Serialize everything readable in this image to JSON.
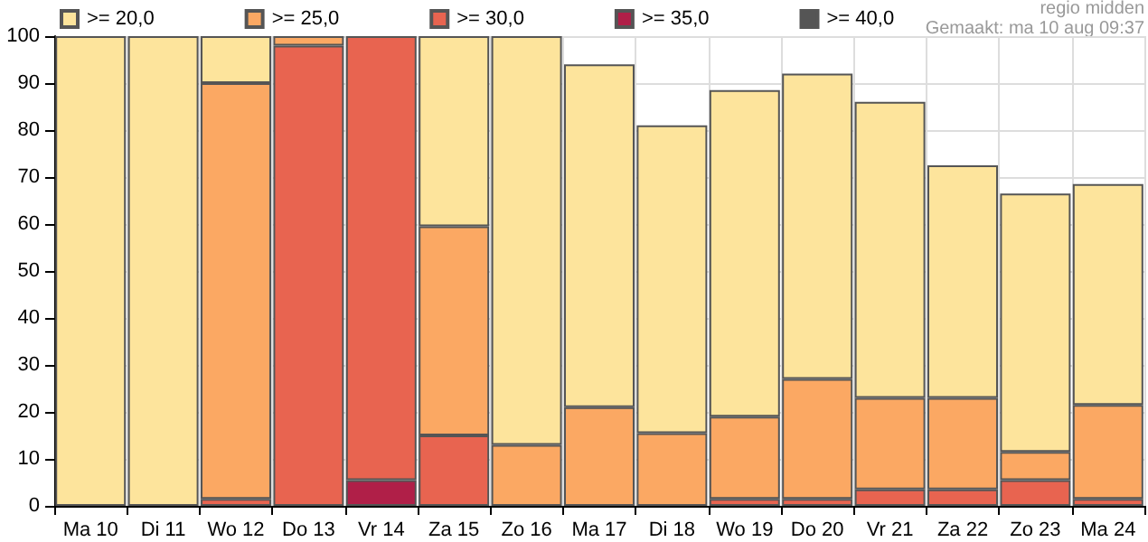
{
  "chart_data": {
    "type": "bar",
    "stacked": true,
    "categories": [
      "Ma 10",
      "Di 11",
      "Wo 12",
      "Do 13",
      "Vr 14",
      "Za 15",
      "Zo 16",
      "Ma 17",
      "Di 18",
      "Wo 19",
      "Do 20",
      "Vr 21",
      "Za 22",
      "Zo 23",
      "Ma 24"
    ],
    "series": [
      {
        "name": ">= 40,0",
        "color": "#555555",
        "values": [
          0,
          0,
          0,
          0,
          0,
          0,
          0,
          0,
          0,
          0,
          0,
          0,
          0,
          0,
          0
        ]
      },
      {
        "name": ">= 35,0",
        "color": "#b01f48",
        "values": [
          0,
          0,
          0,
          0,
          5.5,
          0,
          0,
          0,
          0,
          0,
          0,
          0,
          0,
          0,
          0
        ]
      },
      {
        "name": ">= 30,0",
        "color": "#e86450",
        "values": [
          0,
          0,
          1.5,
          98,
          94.5,
          15,
          0,
          0,
          0,
          1.5,
          1.5,
          3.5,
          3.5,
          5.5,
          1.5
        ]
      },
      {
        "name": ">= 25,0",
        "color": "#fba863",
        "values": [
          0,
          0,
          88.5,
          2,
          0,
          44.5,
          13,
          21,
          15.5,
          17.5,
          25.5,
          19.5,
          19.5,
          6,
          20
        ]
      },
      {
        "name": ">= 20,0",
        "color": "#fde49c",
        "values": [
          100,
          100,
          10,
          0,
          0,
          40.5,
          87,
          73,
          65.5,
          69.5,
          65,
          63,
          49.5,
          55,
          47
        ]
      }
    ],
    "ylim": [
      0,
      100
    ],
    "yticks": [
      0,
      10,
      20,
      30,
      40,
      50,
      60,
      70,
      80,
      90,
      100
    ],
    "grid": true,
    "legend": "top left",
    "annotations": [
      "regio midden",
      "Gemaakt: ma 10 aug 09:37"
    ]
  }
}
